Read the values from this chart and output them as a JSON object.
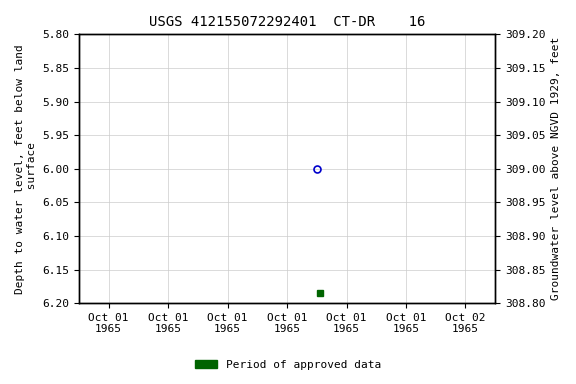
{
  "title": "USGS 412155072292401  CT-DR    16",
  "ylabel_left": "Depth to water level, feet below land\n surface",
  "ylabel_right": "Groundwater level above NGVD 1929, feet",
  "ylim_left": [
    5.8,
    6.2
  ],
  "ylim_right_top": 309.2,
  "ylim_right_bottom": 308.8,
  "yticks_left": [
    5.8,
    5.85,
    5.9,
    5.95,
    6.0,
    6.05,
    6.1,
    6.15,
    6.2
  ],
  "yticks_right": [
    309.2,
    309.15,
    309.1,
    309.05,
    309.0,
    308.95,
    308.9,
    308.85,
    308.8
  ],
  "ytick_labels_left": [
    "5.80",
    "5.85",
    "5.90",
    "5.95",
    "6.00",
    "6.05",
    "6.10",
    "6.15",
    "6.20"
  ],
  "ytick_labels_right": [
    "309.20",
    "309.15",
    "309.10",
    "309.05",
    "309.00",
    "308.95",
    "308.90",
    "308.85",
    "308.80"
  ],
  "point_blue_x": 3.5,
  "point_blue_y": 6.0,
  "point_green_x": 3.55,
  "point_green_y": 6.185,
  "point_blue_color": "#0000cc",
  "point_green_color": "#006400",
  "grid_color": "#cccccc",
  "background_color": "#ffffff",
  "title_fontsize": 10,
  "axis_label_fontsize": 8,
  "tick_fontsize": 8,
  "legend_label": "Period of approved data",
  "legend_color": "#006400",
  "xtick_labels": [
    "Oct 01\n1965",
    "Oct 01\n1965",
    "Oct 01\n1965",
    "Oct 01\n1965",
    "Oct 01\n1965",
    "Oct 01\n1965",
    "Oct 02\n1965"
  ],
  "xtick_positions": [
    0,
    1,
    2,
    3,
    4,
    5,
    6
  ],
  "xlim": [
    -0.5,
    6.5
  ],
  "font_family": "monospace"
}
